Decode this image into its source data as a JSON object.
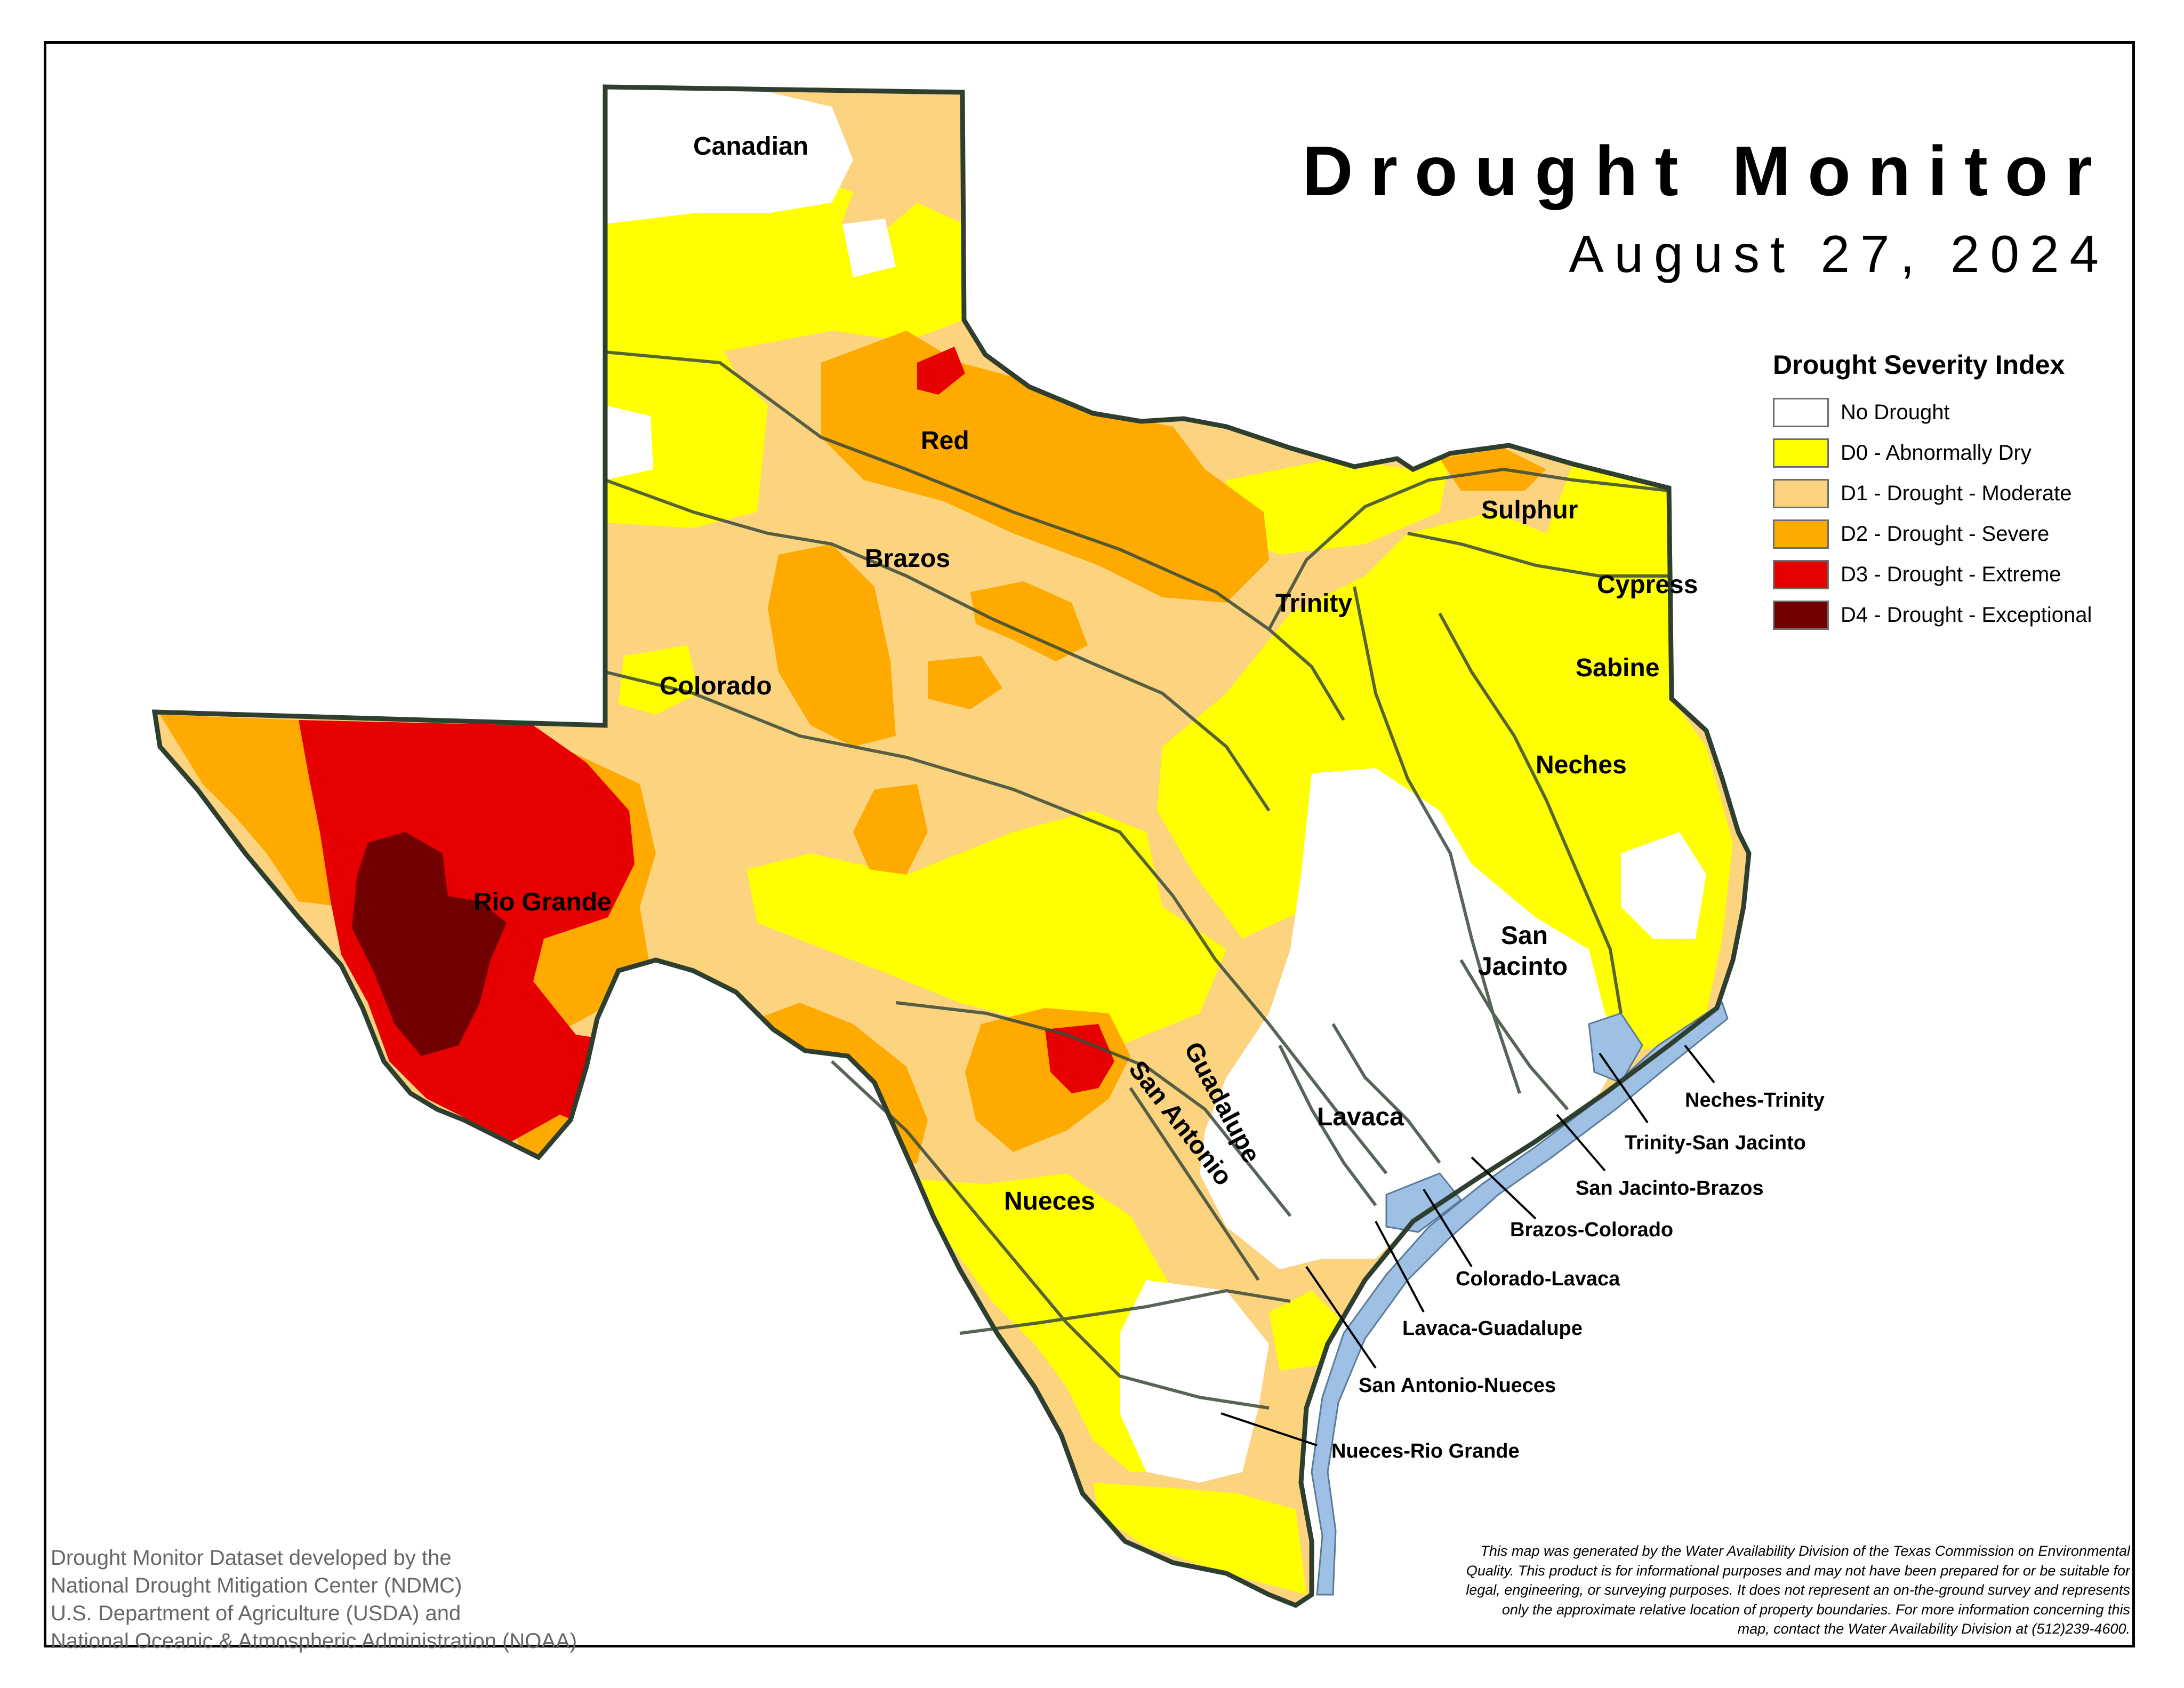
{
  "title": "Drought Monitor",
  "date": "August 27, 2024",
  "legend": {
    "title": "Drought Severity Index",
    "items": [
      {
        "label": "No Drought",
        "color": "#ffffff"
      },
      {
        "label": "D0 - Abnormally Dry",
        "color": "#ffff00"
      },
      {
        "label": "D1 - Drought - Moderate",
        "color": "#fcd37f"
      },
      {
        "label": "D2 - Drought - Severe",
        "color": "#ffaa00"
      },
      {
        "label": "D3 - Drought - Extreme",
        "color": "#e60000"
      },
      {
        "label": "D4 - Drought - Exceptional",
        "color": "#730000"
      }
    ]
  },
  "basins": {
    "canadian": "Canadian",
    "red": "Red",
    "brazos": "Brazos",
    "colorado": "Colorado",
    "rio_grande": "Rio Grande",
    "trinity": "Trinity",
    "sulphur": "Sulphur",
    "cypress": "Cypress",
    "sabine": "Sabine",
    "neches": "Neches",
    "san_jacinto_1": "San",
    "san_jacinto_2": "Jacinto",
    "nueces": "Nueces",
    "guadalupe": "Guadalupe",
    "san_antonio": "San Antonio",
    "lavaca": "Lavaca"
  },
  "coastal_basins": [
    "Neches-Trinity",
    "Trinity-San Jacinto",
    "San Jacinto-Brazos",
    "Brazos-Colorado",
    "Colorado-Lavaca",
    "Lavaca-Guadalupe",
    "San Antonio-Nueces",
    "Nueces-Rio Grande"
  ],
  "credit": [
    "Drought Monitor Dataset developed by the",
    "National Drought Mitigation Center (NDMC)",
    "U.S. Department of Agriculture (USDA) and",
    "National Oceanic & Atmospheric Administration (NOAA)"
  ],
  "disclaimer": [
    "This map was generated by the Water Availability Division of the Texas Commission on Environmental",
    "Quality. This product is for informational purposes and may not have been prepared for or be suitable for",
    "legal, engineering, or surveying purposes. It does not represent an on-the-ground survey and represents",
    "only the approximate relative location of property boundaries. For more information concerning this",
    "map, contact the Water Availability Division at (512)239-4600."
  ],
  "colors": {
    "no_drought": "#ffffff",
    "d0": "#ffff00",
    "d1": "#fcd37f",
    "d2": "#ffaa00",
    "d3": "#e60000",
    "d4": "#730000",
    "water": "#9ec0e4",
    "border": "#3a4a3a"
  }
}
